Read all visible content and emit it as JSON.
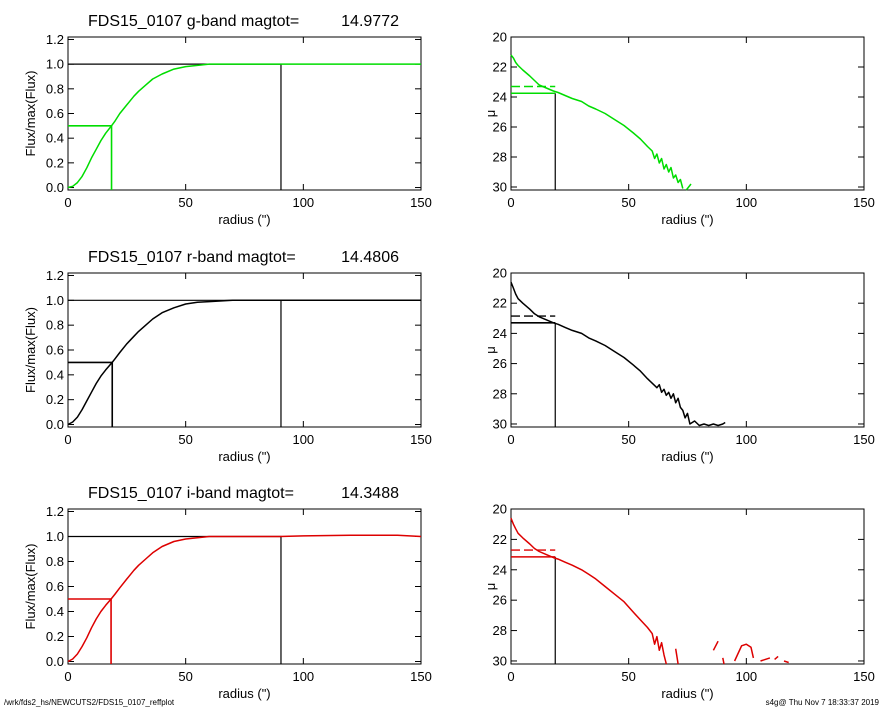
{
  "footer": {
    "path": "/wrk/fds2_hs/NEWCUTS2/FDS15_0107_reffplot",
    "stamp": "s4g@  Thu Nov  7 18:33:37 2019"
  },
  "chart_data": [
    {
      "type": "line",
      "panel": "growth-curve",
      "band": "g",
      "color": "#00dd00",
      "title": "FDS15_0107 g-band  magtot=",
      "title_value": "14.9772",
      "xlabel": "radius (\")",
      "ylabel": "Flux/max(Flux)",
      "xlim": [
        0,
        150
      ],
      "ylim": [
        -0.02,
        1.22
      ],
      "xticks": [
        0,
        50,
        100,
        150
      ],
      "yticks": [
        0.0,
        0.2,
        0.4,
        0.6,
        0.8,
        1.0,
        1.2
      ],
      "ytick_labels": [
        "0.0",
        "0.2",
        "0.4",
        "0.6",
        "0.8",
        "1.0",
        "1.2"
      ],
      "series": [
        {
          "x": [
            0,
            2,
            4,
            6,
            8,
            10,
            12,
            14,
            16,
            18.5,
            20,
            22,
            25,
            28,
            30,
            33,
            36,
            40,
            45,
            50,
            55,
            60,
            70,
            80,
            90,
            100,
            120,
            150
          ],
          "y": [
            0.0,
            0.01,
            0.04,
            0.09,
            0.16,
            0.24,
            0.31,
            0.38,
            0.44,
            0.5,
            0.54,
            0.6,
            0.67,
            0.74,
            0.78,
            0.83,
            0.88,
            0.92,
            0.96,
            0.98,
            0.99,
            1.0,
            1.0,
            1.0,
            1.0,
            1.0,
            1.0,
            1.0
          ]
        }
      ],
      "half_light_radius": 18.5,
      "half_light_level": 0.5,
      "max_radius": 90.5,
      "max_level": 1.0
    },
    {
      "type": "line",
      "panel": "surface-brightness",
      "band": "g",
      "color": "#00dd00",
      "xlabel": "radius (\")",
      "ylabel": "μ",
      "xlim": [
        0,
        150
      ],
      "ylim": [
        30.2,
        20
      ],
      "xticks": [
        0,
        50,
        100,
        150
      ],
      "yticks": [
        20,
        22,
        24,
        26,
        28,
        30
      ],
      "series": [
        {
          "x": [
            0,
            1,
            2,
            3,
            5,
            8,
            10,
            12,
            15,
            18,
            20,
            23,
            26,
            30,
            33,
            36,
            40,
            44,
            48,
            52,
            55,
            58,
            60,
            61,
            62,
            63,
            64,
            65,
            66,
            67,
            68,
            69,
            70,
            71,
            72,
            73
          ],
          "y": [
            21.2,
            21.4,
            21.7,
            21.9,
            22.2,
            22.6,
            22.9,
            23.2,
            23.4,
            23.6,
            23.7,
            23.9,
            24.1,
            24.3,
            24.6,
            24.8,
            25.1,
            25.5,
            25.9,
            26.4,
            26.8,
            27.3,
            27.6,
            28.1,
            27.8,
            28.4,
            28.1,
            28.8,
            28.5,
            29.0,
            28.7,
            29.4,
            29.2,
            29.7,
            29.5,
            30.1
          ]
        },
        {
          "x": [
            74.5,
            76.5
          ],
          "y": [
            30.2,
            29.8
          ]
        }
      ],
      "mu_eff_radius": 18.8,
      "mu_eff": 23.75,
      "mu_mean_eff": 23.3
    },
    {
      "type": "line",
      "panel": "growth-curve",
      "band": "r",
      "color": "#000000",
      "title": "FDS15_0107 r-band  magtot=",
      "title_value": "14.4806",
      "xlabel": "radius (\")",
      "ylabel": "Flux/max(Flux)",
      "xlim": [
        0,
        150
      ],
      "ylim": [
        -0.02,
        1.22
      ],
      "xticks": [
        0,
        50,
        100,
        150
      ],
      "yticks": [
        0.0,
        0.2,
        0.4,
        0.6,
        0.8,
        1.0,
        1.2
      ],
      "ytick_labels": [
        "0.0",
        "0.2",
        "0.4",
        "0.6",
        "0.8",
        "1.0",
        "1.2"
      ],
      "series": [
        {
          "x": [
            0,
            2,
            4,
            6,
            8,
            10,
            12,
            14,
            16,
            18.8,
            20,
            22,
            25,
            28,
            30,
            33,
            36,
            40,
            45,
            50,
            55,
            60,
            70,
            80,
            90,
            100,
            120,
            150
          ],
          "y": [
            0.0,
            0.02,
            0.06,
            0.12,
            0.19,
            0.26,
            0.33,
            0.39,
            0.44,
            0.5,
            0.53,
            0.58,
            0.65,
            0.71,
            0.75,
            0.8,
            0.85,
            0.9,
            0.94,
            0.97,
            0.985,
            0.99,
            1.0,
            1.0,
            1.0,
            1.0,
            1.0,
            1.0
          ]
        }
      ],
      "half_light_radius": 18.8,
      "half_light_level": 0.5,
      "max_radius": 90.5,
      "max_level": 1.0
    },
    {
      "type": "line",
      "panel": "surface-brightness",
      "band": "r",
      "color": "#000000",
      "xlabel": "radius (\")",
      "ylabel": "μ",
      "xlim": [
        0,
        150
      ],
      "ylim": [
        30.2,
        20
      ],
      "xticks": [
        0,
        50,
        100,
        150
      ],
      "yticks": [
        20,
        22,
        24,
        26,
        28,
        30
      ],
      "series": [
        {
          "x": [
            0,
            1,
            2,
            3,
            5,
            8,
            10,
            12,
            15,
            18,
            20,
            23,
            26,
            30,
            33,
            36,
            40,
            44,
            48,
            52,
            55,
            58,
            60,
            62,
            63,
            64,
            65,
            66,
            67,
            68,
            69,
            70,
            71,
            72,
            73,
            74,
            75,
            76,
            78,
            80,
            82,
            84,
            86,
            88,
            90,
            91
          ],
          "y": [
            20.6,
            21.0,
            21.4,
            21.7,
            22.0,
            22.4,
            22.7,
            22.9,
            23.1,
            23.3,
            23.4,
            23.6,
            23.8,
            24.0,
            24.3,
            24.5,
            24.8,
            25.2,
            25.6,
            26.1,
            26.5,
            27.0,
            27.3,
            27.6,
            27.4,
            27.9,
            27.7,
            28.1,
            27.9,
            28.3,
            28.0,
            28.6,
            28.3,
            28.9,
            29.1,
            29.6,
            29.3,
            30.0,
            29.8,
            30.1,
            30.0,
            30.1,
            30.0,
            30.1,
            30.0,
            29.9
          ]
        }
      ],
      "mu_eff_radius": 18.8,
      "mu_eff": 23.3,
      "mu_mean_eff": 22.85
    },
    {
      "type": "line",
      "panel": "growth-curve",
      "band": "i",
      "color": "#dd0000",
      "title": "FDS15_0107 i-band  magtot=",
      "title_value": "14.3488",
      "xlabel": "radius (\")",
      "ylabel": "Flux/max(Flux)",
      "xlim": [
        0,
        150
      ],
      "ylim": [
        -0.02,
        1.22
      ],
      "xticks": [
        0,
        50,
        100,
        150
      ],
      "yticks": [
        0.0,
        0.2,
        0.4,
        0.6,
        0.8,
        1.0,
        1.2
      ],
      "ytick_labels": [
        "0.0",
        "0.2",
        "0.4",
        "0.6",
        "0.8",
        "1.0",
        "1.2"
      ],
      "series": [
        {
          "x": [
            0,
            2,
            4,
            6,
            8,
            10,
            12,
            14,
            16,
            18.3,
            20,
            22,
            25,
            28,
            30,
            33,
            36,
            40,
            45,
            50,
            55,
            60,
            70,
            80,
            90,
            100,
            120,
            140,
            150
          ],
          "y": [
            0.0,
            0.02,
            0.06,
            0.12,
            0.19,
            0.27,
            0.34,
            0.4,
            0.45,
            0.5,
            0.54,
            0.59,
            0.66,
            0.73,
            0.77,
            0.82,
            0.87,
            0.92,
            0.96,
            0.98,
            0.99,
            1.0,
            1.0,
            1.0,
            1.0,
            1.005,
            1.01,
            1.01,
            1.0
          ]
        }
      ],
      "half_light_radius": 18.3,
      "half_light_level": 0.5,
      "max_radius": 90.5,
      "max_level": 1.0
    },
    {
      "type": "line",
      "panel": "surface-brightness",
      "band": "i",
      "color": "#dd0000",
      "xlabel": "radius (\")",
      "ylabel": "μ",
      "xlim": [
        0,
        150
      ],
      "ylim": [
        30.2,
        20
      ],
      "xticks": [
        0,
        50,
        100,
        150
      ],
      "yticks": [
        20,
        22,
        24,
        26,
        28,
        30
      ],
      "series": [
        {
          "x": [
            0,
            1,
            2,
            3,
            5,
            8,
            10,
            12,
            15,
            18,
            20,
            23,
            26,
            30,
            33,
            36,
            40,
            44,
            48,
            52,
            55,
            58,
            60,
            61,
            62,
            63,
            64,
            65,
            66
          ],
          "y": [
            20.6,
            21.0,
            21.3,
            21.6,
            21.9,
            22.3,
            22.6,
            22.8,
            23.0,
            23.2,
            23.3,
            23.5,
            23.7,
            24.0,
            24.3,
            24.6,
            25.1,
            25.6,
            26.1,
            26.8,
            27.3,
            27.8,
            28.2,
            28.9,
            28.4,
            29.3,
            28.8,
            29.6,
            30.2
          ]
        },
        {
          "x": [
            70,
            71
          ],
          "y": [
            29.2,
            30.2
          ]
        },
        {
          "x": [
            86,
            88
          ],
          "y": [
            29.3,
            28.7
          ]
        },
        {
          "x": [
            90,
            90.5
          ],
          "y": [
            29.8,
            30.2
          ]
        },
        {
          "x": [
            95,
            98,
            100,
            102,
            103
          ],
          "y": [
            30.0,
            29.0,
            28.9,
            29.1,
            29.8
          ]
        },
        {
          "x": [
            106,
            110
          ],
          "y": [
            30.0,
            29.8
          ]
        },
        {
          "x": [
            112,
            113.5
          ],
          "y": [
            29.9,
            29.7
          ]
        },
        {
          "x": [
            116,
            118
          ],
          "y": [
            30.0,
            30.1
          ]
        }
      ],
      "mu_eff_radius": 18.8,
      "mu_eff": 23.15,
      "mu_mean_eff": 22.7
    }
  ]
}
